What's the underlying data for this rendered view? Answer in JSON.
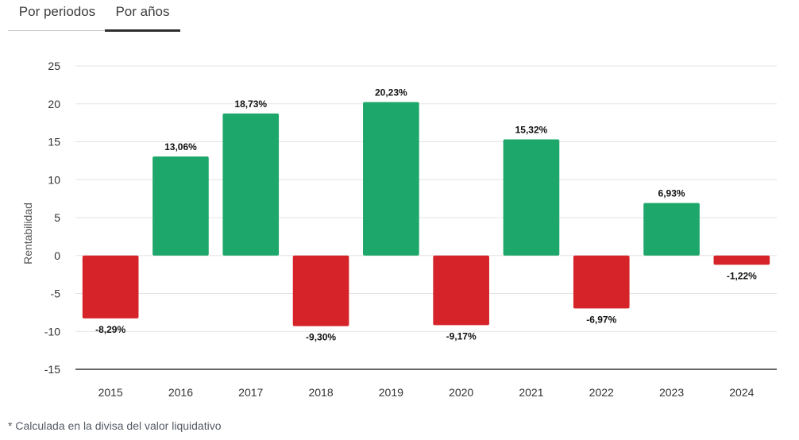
{
  "tabs": [
    {
      "label": "Por periodos",
      "active": false
    },
    {
      "label": "Por años",
      "active": true
    }
  ],
  "footnote": "* Calculada en la divisa del valor liquidativo",
  "colors": {
    "positive": "#1ea76a",
    "negative": "#d52329",
    "grid": "#e3e3e3",
    "axis": "#333333"
  },
  "chart_data": {
    "type": "bar",
    "categories": [
      "2015",
      "2016",
      "2017",
      "2018",
      "2019",
      "2020",
      "2021",
      "2022",
      "2023",
      "2024"
    ],
    "values": [
      -8.29,
      13.06,
      18.73,
      -9.3,
      20.23,
      -9.17,
      15.32,
      -6.97,
      6.93,
      -1.22
    ],
    "data_labels": [
      "-8,29%",
      "13,06%",
      "18,73%",
      "-9,30%",
      "20,23%",
      "-9,17%",
      "15,32%",
      "-6,97%",
      "6,93%",
      "-1,22%"
    ],
    "ylabel": "Rentabilidad",
    "xlabel": "",
    "ylim": [
      -15,
      25
    ],
    "yticks": [
      25,
      20,
      15,
      10,
      5,
      0,
      -5,
      -10,
      -15
    ],
    "grid": true,
    "legend": "none"
  }
}
